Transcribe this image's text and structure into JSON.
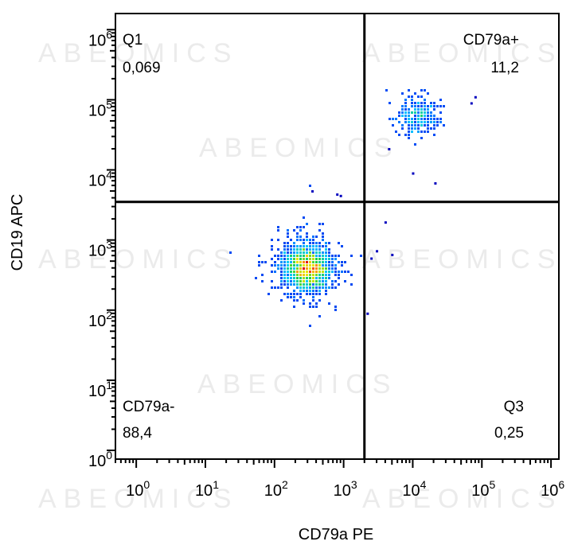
{
  "watermark_text": "ABEOMICS",
  "chart_data": {
    "type": "scatter",
    "title": "",
    "xlabel": "CD79a PE",
    "ylabel": "CD19 APC",
    "xscale": "log",
    "yscale": "log",
    "xlim": [
      0.5,
      1300000
    ],
    "ylim": [
      0.75,
      1700000
    ],
    "x_ticks": [
      {
        "base": "10",
        "exp": "0",
        "value": 1
      },
      {
        "base": "10",
        "exp": "1",
        "value": 10
      },
      {
        "base": "10",
        "exp": "2",
        "value": 100
      },
      {
        "base": "10",
        "exp": "3",
        "value": 1000
      },
      {
        "base": "10",
        "exp": "4",
        "value": 10000
      },
      {
        "base": "10",
        "exp": "5",
        "value": 100000
      },
      {
        "base": "10",
        "exp": "6",
        "value": 1000000
      }
    ],
    "y_ticks": [
      {
        "base": "10",
        "exp": "0",
        "value": 1
      },
      {
        "base": "10",
        "exp": "1",
        "value": 10
      },
      {
        "base": "10",
        "exp": "2",
        "value": 100
      },
      {
        "base": "10",
        "exp": "3",
        "value": 1000
      },
      {
        "base": "10",
        "exp": "4",
        "value": 10000
      },
      {
        "base": "10",
        "exp": "5",
        "value": 100000
      },
      {
        "base": "10",
        "exp": "6",
        "value": 1000000
      }
    ],
    "grid": false,
    "colormap": "density (blue-cyan-green-yellow-red)",
    "gates": {
      "x": 2000,
      "y": 3500
    },
    "quadrants": [
      {
        "name": "Q1",
        "value": "0,069",
        "position": "top-left"
      },
      {
        "name": "CD79a+",
        "value": "11,2",
        "position": "top-right"
      },
      {
        "name": "CD79a-",
        "value": "88,4",
        "position": "bottom-left"
      },
      {
        "name": "Q3",
        "value": "0,25",
        "position": "bottom-right"
      }
    ],
    "populations": [
      {
        "label": "CD79a-",
        "center_x": 300,
        "center_y": 400,
        "spread_x_decades": 0.17,
        "spread_y_decades": 0.16,
        "events": 1700
      },
      {
        "label": "CD79a+",
        "center_x": 12000,
        "center_y": 60000,
        "spread_x_decades": 0.15,
        "spread_y_decades": 0.12,
        "events": 260
      }
    ],
    "outliers": [
      {
        "x": 350,
        "y": 5000
      },
      {
        "x": 800,
        "y": 4500
      },
      {
        "x": 900,
        "y": 4300
      },
      {
        "x": 4000,
        "y": 1800
      },
      {
        "x": 2200,
        "y": 90
      },
      {
        "x": 2500,
        "y": 550
      },
      {
        "x": 5000,
        "y": 620
      },
      {
        "x": 3000,
        "y": 700
      },
      {
        "x": 4500,
        "y": 20000
      },
      {
        "x": 10000,
        "y": 9000
      },
      {
        "x": 21000,
        "y": 6500
      },
      {
        "x": 70000,
        "y": 90000
      },
      {
        "x": 80000,
        "y": 110000
      }
    ]
  }
}
